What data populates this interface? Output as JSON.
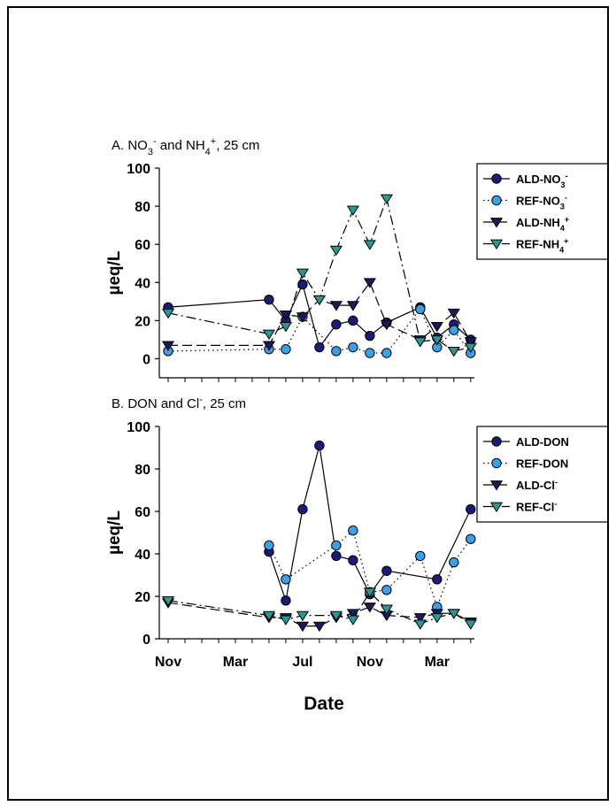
{
  "chart_data": [
    {
      "type": "line",
      "title": "A. NO3- and NH4+, 25 cm",
      "title_parts": {
        "prefix": "A. NO",
        "sub1": "3",
        "sup1": "-",
        "mid": " and NH",
        "sub2": "4",
        "sup2": "+",
        "suffix": ", 25 cm"
      },
      "ylabel": "µeq/L",
      "ylim": [
        -10,
        100
      ],
      "yticks": [
        "0",
        "20",
        "40",
        "60",
        "80",
        "100"
      ],
      "series": [
        {
          "name": "ALD-NO3-",
          "legend": {
            "base": "ALD-NO",
            "sub": "3",
            "sup": "-"
          },
          "marker": "circle",
          "color": "#1a1a7a",
          "line": "solid",
          "points": [
            [
              "2001-11-01",
              27
            ],
            [
              "2002-05-01",
              31
            ],
            [
              "2002-06-01",
              20
            ],
            [
              "2002-07-01",
              39
            ],
            [
              "2002-08-01",
              6
            ],
            [
              "2002-09-01",
              18
            ],
            [
              "2002-10-01",
              20
            ],
            [
              "2002-11-01",
              12
            ],
            [
              "2002-12-01",
              19
            ],
            [
              "2003-02-01",
              27
            ],
            [
              "2003-03-01",
              11
            ],
            [
              "2003-04-01",
              18
            ],
            [
              "2003-05-01",
              10
            ]
          ]
        },
        {
          "name": "REF-NO3-",
          "legend": {
            "base": "REF-NO",
            "sub": "3",
            "sup": "-"
          },
          "marker": "circle",
          "color": "#3aa0e8",
          "line": "dotted",
          "points": [
            [
              "2001-11-01",
              4
            ],
            [
              "2002-05-01",
              5
            ],
            [
              "2002-06-01",
              5
            ],
            [
              "2002-07-01",
              22
            ],
            [
              "2002-09-01",
              4
            ],
            [
              "2002-10-01",
              6
            ],
            [
              "2002-11-01",
              3
            ],
            [
              "2002-12-01",
              3
            ],
            [
              "2003-02-01",
              26
            ],
            [
              "2003-03-01",
              6
            ],
            [
              "2003-04-01",
              15
            ],
            [
              "2003-05-01",
              3
            ]
          ]
        },
        {
          "name": "ALD-NH4+",
          "legend": {
            "base": "ALD-NH",
            "sub": "4",
            "sup": "+"
          },
          "marker": "triangle-down",
          "color": "#1a1a5a",
          "line": "longdash",
          "points": [
            [
              "2001-11-01",
              7
            ],
            [
              "2002-05-01",
              7
            ],
            [
              "2002-06-01",
              23
            ],
            [
              "2002-07-01",
              22
            ],
            [
              "2002-08-01",
              31
            ],
            [
              "2002-09-01",
              28
            ],
            [
              "2002-10-01",
              28
            ],
            [
              "2002-11-01",
              40
            ],
            [
              "2002-12-01",
              18
            ],
            [
              "2003-02-01",
              10
            ],
            [
              "2003-03-01",
              17
            ],
            [
              "2003-04-01",
              24
            ],
            [
              "2003-05-01",
              9
            ]
          ]
        },
        {
          "name": "REF-NH4+",
          "legend": {
            "base": "REF-NH",
            "sub": "4",
            "sup": "+"
          },
          "marker": "triangle-down",
          "color": "#2a9a90",
          "line": "dashdot",
          "points": [
            [
              "2001-11-01",
              24
            ],
            [
              "2002-05-01",
              13
            ],
            [
              "2002-06-01",
              17
            ],
            [
              "2002-07-01",
              45
            ],
            [
              "2002-08-01",
              31
            ],
            [
              "2002-09-01",
              57
            ],
            [
              "2002-10-01",
              78
            ],
            [
              "2002-11-01",
              60
            ],
            [
              "2002-12-01",
              84
            ],
            [
              "2003-02-01",
              9
            ],
            [
              "2003-03-01",
              10
            ],
            [
              "2003-04-01",
              4
            ],
            [
              "2003-05-01",
              6
            ]
          ]
        }
      ]
    },
    {
      "type": "line",
      "title": "B. DON and Cl-, 25 cm",
      "title_parts": {
        "prefix": "B. DON and Cl",
        "sup1": "-",
        "suffix": ", 25 cm"
      },
      "ylabel": "µeq/L",
      "xlabel": "Date",
      "ylim": [
        0,
        100
      ],
      "yticks": [
        "0",
        "20",
        "40",
        "60",
        "80",
        "100"
      ],
      "xticks": [
        "Nov",
        "Mar",
        "Jul",
        "Nov",
        "Mar"
      ],
      "series": [
        {
          "name": "ALD-DON",
          "legend": {
            "base": "ALD-DON"
          },
          "marker": "circle",
          "color": "#1a1a7a",
          "line": "solid",
          "points": [
            [
              "2002-05-01",
              41
            ],
            [
              "2002-06-01",
              18
            ],
            [
              "2002-07-01",
              61
            ],
            [
              "2002-08-01",
              91
            ],
            [
              "2002-09-01",
              39
            ],
            [
              "2002-10-01",
              37
            ],
            [
              "2002-11-01",
              21
            ],
            [
              "2002-12-01",
              32
            ],
            [
              "2003-03-01",
              28
            ],
            [
              "2003-05-01",
              61
            ]
          ]
        },
        {
          "name": "REF-DON",
          "legend": {
            "base": "REF-DON"
          },
          "marker": "circle",
          "color": "#3aa0e8",
          "line": "dotted",
          "points": [
            [
              "2002-05-01",
              44
            ],
            [
              "2002-06-01",
              28
            ],
            [
              "2002-09-01",
              44
            ],
            [
              "2002-10-01",
              51
            ],
            [
              "2002-11-01",
              22
            ],
            [
              "2002-12-01",
              23
            ],
            [
              "2003-02-01",
              39
            ],
            [
              "2003-03-01",
              15
            ],
            [
              "2003-04-01",
              36
            ],
            [
              "2003-05-01",
              47
            ]
          ]
        },
        {
          "name": "ALD-Cl-",
          "legend": {
            "base": "ALD-Cl",
            "sup": "-"
          },
          "marker": "triangle-down",
          "color": "#1a1a5a",
          "line": "longdash",
          "points": [
            [
              "2001-11-01",
              17
            ],
            [
              "2002-05-01",
              10
            ],
            [
              "2002-06-01",
              10
            ],
            [
              "2002-07-01",
              6
            ],
            [
              "2002-08-01",
              6
            ],
            [
              "2002-09-01",
              10
            ],
            [
              "2002-10-01",
              12
            ],
            [
              "2002-11-01",
              15
            ],
            [
              "2002-12-01",
              11
            ],
            [
              "2003-02-01",
              10
            ],
            [
              "2003-03-01",
              12
            ],
            [
              "2003-04-01",
              12
            ],
            [
              "2003-05-01",
              8
            ]
          ]
        },
        {
          "name": "REF-Cl-",
          "legend": {
            "base": "REF-Cl",
            "sup": "-"
          },
          "marker": "triangle-down",
          "color": "#2a9a90",
          "line": "dashdot",
          "points": [
            [
              "2001-11-01",
              18
            ],
            [
              "2002-05-01",
              11
            ],
            [
              "2002-06-01",
              9
            ],
            [
              "2002-07-01",
              11
            ],
            [
              "2002-09-01",
              11
            ],
            [
              "2002-10-01",
              9
            ],
            [
              "2002-11-01",
              22
            ],
            [
              "2002-12-01",
              14
            ],
            [
              "2003-02-01",
              7
            ],
            [
              "2003-03-01",
              10
            ],
            [
              "2003-04-01",
              12
            ],
            [
              "2003-05-01",
              7
            ]
          ]
        }
      ]
    }
  ]
}
